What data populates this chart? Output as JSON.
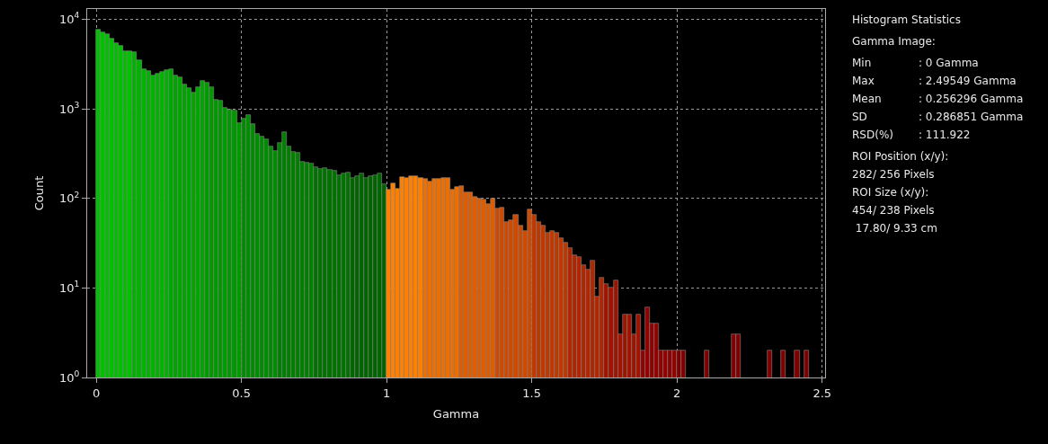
{
  "chart_data": {
    "type": "histogram",
    "xlabel": "Gamma",
    "ylabel": "Count",
    "bins": [
      0,
      0.015625,
      0.03125,
      0.046875,
      0.0625,
      0.078125,
      0.09375,
      0.109375,
      0.125,
      0.140625,
      0.15625,
      0.171875,
      0.1875,
      0.203125,
      0.21875,
      0.234375,
      0.25,
      0.265625,
      0.28125,
      0.296875,
      0.3125,
      0.328125,
      0.34375,
      0.359375,
      0.375,
      0.390625,
      0.40625,
      0.421875,
      0.4375,
      0.453125,
      0.46875,
      0.484375,
      0.5,
      0.515625,
      0.53125,
      0.546875,
      0.5625,
      0.578125,
      0.59375,
      0.609375,
      0.625,
      0.640625,
      0.65625,
      0.671875,
      0.6875,
      0.703125,
      0.71875,
      0.734375,
      0.75,
      0.765625,
      0.78125,
      0.796875,
      0.8125,
      0.828125,
      0.84375,
      0.859375,
      0.875,
      0.890625,
      0.90625,
      0.921875,
      0.9375,
      0.953125,
      0.96875,
      0.984375,
      1,
      1.015625,
      1.03125,
      1.046875,
      1.0625,
      1.078125,
      1.09375,
      1.109375,
      1.125,
      1.140625,
      1.15625,
      1.171875,
      1.1875,
      1.203125,
      1.21875,
      1.234375,
      1.25,
      1.265625,
      1.28125,
      1.296875,
      1.3125,
      1.328125,
      1.34375,
      1.359375,
      1.375,
      1.390625,
      1.40625,
      1.421875,
      1.4375,
      1.453125,
      1.46875,
      1.484375,
      1.5,
      1.515625,
      1.53125,
      1.546875,
      1.5625,
      1.578125,
      1.59375,
      1.609375,
      1.625,
      1.640625,
      1.65625,
      1.671875,
      1.6875,
      1.703125,
      1.71875,
      1.734375,
      1.75,
      1.765625,
      1.78125,
      1.796875,
      1.8125,
      1.828125,
      1.84375,
      1.859375,
      1.875,
      1.890625,
      1.90625,
      1.921875,
      1.9375,
      1.953125,
      1.96875,
      1.984375,
      2,
      2.015625,
      2.03125,
      2.046875,
      2.0625,
      2.078125,
      2.09375,
      2.109375,
      2.125,
      2.140625,
      2.15625,
      2.171875,
      2.1875,
      2.203125,
      2.21875,
      2.234375,
      2.25,
      2.265625,
      2.28125,
      2.296875,
      2.3125,
      2.328125,
      2.34375,
      2.359375,
      2.375,
      2.390625,
      2.40625,
      2.421875,
      2.4375,
      2.453125
    ],
    "values": [
      7560,
      7160,
      6760,
      6000,
      5350,
      5040,
      4340,
      4440,
      4250,
      3450,
      2770,
      2610,
      2340,
      2460,
      2570,
      2710,
      2770,
      2340,
      2240,
      1860,
      1690,
      1520,
      1740,
      2040,
      1960,
      1740,
      1260,
      1230,
      1020,
      985,
      945,
      695,
      780,
      845,
      670,
      530,
      490,
      455,
      376,
      340,
      420,
      543,
      376,
      333,
      322,
      256,
      250,
      246,
      224,
      215,
      219,
      208,
      204,
      180,
      188,
      195,
      170,
      175,
      188,
      170,
      175,
      180,
      188,
      144,
      125,
      148,
      128,
      171,
      170,
      177,
      175,
      167,
      165,
      155,
      165,
      165,
      167,
      167,
      125,
      133,
      138,
      116,
      116,
      104,
      100,
      97,
      87,
      100,
      77,
      78,
      55,
      57,
      65,
      50,
      43,
      75,
      65,
      55,
      50,
      41,
      43,
      41,
      36,
      32,
      28,
      23,
      22,
      18,
      16,
      20,
      8,
      13,
      11,
      10,
      12,
      3,
      5,
      5,
      3,
      5,
      2,
      6,
      4,
      4,
      2,
      2,
      2,
      2,
      2,
      2,
      null,
      null,
      null,
      null,
      2,
      null,
      null,
      null,
      null,
      null,
      3,
      3,
      null,
      null,
      null,
      null,
      null,
      null,
      2,
      null,
      null,
      2,
      null,
      null,
      2,
      null,
      2
    ],
    "colors": [
      "#00c000",
      "#00c000",
      "#00c000",
      "#00c000",
      "#00c000",
      "#00c000",
      "#00c000",
      "#00c000",
      "#00b300",
      "#00b300",
      "#00b300",
      "#00b300",
      "#00b300",
      "#00b300",
      "#00b300",
      "#00b300",
      "#00a600",
      "#00a600",
      "#00a600",
      "#00a600",
      "#00a600",
      "#00a600",
      "#00a600",
      "#00a600",
      "#009900",
      "#009900",
      "#009900",
      "#009900",
      "#009900",
      "#009900",
      "#009900",
      "#009900",
      "#008c00",
      "#008c00",
      "#008c00",
      "#008c00",
      "#008c00",
      "#008c00",
      "#008c00",
      "#008c00",
      "#007f00",
      "#007f00",
      "#007f00",
      "#007f00",
      "#007f00",
      "#007f00",
      "#007f00",
      "#007f00",
      "#007200",
      "#007200",
      "#007200",
      "#007200",
      "#007200",
      "#007200",
      "#007200",
      "#007200",
      "#006500",
      "#006500",
      "#006500",
      "#006500",
      "#006500",
      "#006500",
      "#006500",
      "#006500",
      "#ff8000",
      "#ff8000",
      "#ff8000",
      "#ff8000",
      "#ff8000",
      "#ff8000",
      "#ff8000",
      "#ff8000",
      "#ef6e00",
      "#ef6e00",
      "#ef6e00",
      "#ef6e00",
      "#ef6e00",
      "#ef6e00",
      "#ef6e00",
      "#ef6e00",
      "#df5c00",
      "#df5c00",
      "#df5c00",
      "#df5c00",
      "#df5c00",
      "#df5c00",
      "#df5c00",
      "#df5c00",
      "#cf4a00",
      "#cf4a00",
      "#cf4a00",
      "#cf4a00",
      "#cf4a00",
      "#cf4a00",
      "#cf4a00",
      "#cf4a00",
      "#bf3800",
      "#bf3800",
      "#bf3800",
      "#bf3800",
      "#bf3800",
      "#bf3800",
      "#bf3800",
      "#bf3800",
      "#af2600",
      "#af2600",
      "#af2600",
      "#af2600",
      "#af2600",
      "#af2600",
      "#af2600",
      "#af2600",
      "#9f1400",
      "#9f1400",
      "#9f1400",
      "#9f1400",
      "#9f1400",
      "#9f1400",
      "#9f1400",
      "#9f1400",
      "#8f0200",
      "#8f0200",
      "#8f0200",
      "#8f0200",
      "#8f0200",
      "#8f0200",
      "#8f0200",
      "#8f0200",
      "#800000",
      "#800000",
      "#800000",
      "#800000",
      "#800000",
      "#800000",
      "#800000",
      "#800000",
      "#800000",
      "#800000",
      "#800000",
      "#800000",
      "#800000",
      "#800000",
      "#800000",
      "#800000",
      "#800000",
      "#800000",
      "#800000",
      "#800000",
      "#800000",
      "#800000",
      "#800000",
      "#800000",
      "#800000",
      "#800000",
      "#800000",
      "#800000",
      "#800000"
    ],
    "xlim": [
      -0.031,
      2.51
    ],
    "ylim": [
      1,
      13000
    ],
    "xticks": [
      0,
      0.5,
      1,
      1.5,
      2,
      2.5
    ],
    "yticks": [
      {
        "value": 1,
        "label": "10$^{0}$"
      },
      {
        "value": 10,
        "label": "10$^{1}$"
      },
      {
        "value": 100,
        "label": "10$^{2}$"
      },
      {
        "value": 1000,
        "label": "10$^{3}$"
      },
      {
        "value": 10000,
        "label": "10$^{4}$"
      }
    ],
    "log": "y",
    "grid": true,
    "annotations": [
      "Histogram Statistics",
      "Gamma Image:",
      "Min",
      ": 0 Gamma",
      "Max",
      ": 2.49549 Gamma",
      "Mean",
      ": 0.256296 Gamma",
      "SD",
      ": 0.286851 Gamma",
      "RSD(%)",
      ": 111.922",
      "ROI Position (x/y):",
      "282/ 256 Pixels",
      "ROI Size (x/y):",
      "454/ 238 Pixels",
      " 17.80/ 9.33 cm"
    ]
  }
}
